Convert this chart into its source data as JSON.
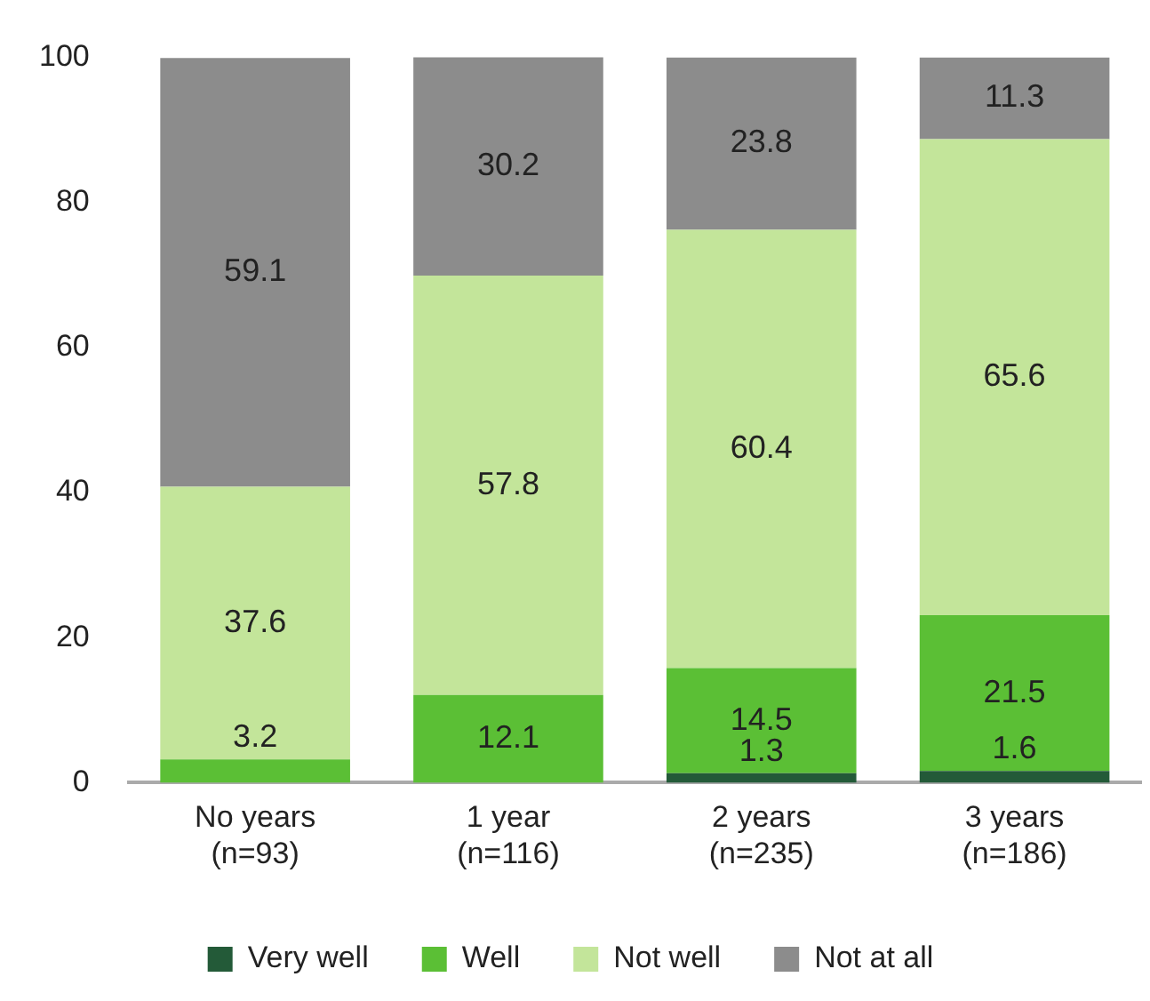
{
  "chart_data": {
    "type": "bar",
    "stacked": true,
    "categories": [
      "No years\n(n=93)",
      "1 year\n(n=116)",
      "2 years\n(n=235)",
      "3 years\n(n=186)"
    ],
    "series": [
      {
        "name": "Very well",
        "color": "#235a38",
        "values": [
          null,
          null,
          1.3,
          1.6
        ]
      },
      {
        "name": "Well",
        "color": "#5bbf35",
        "values": [
          3.2,
          12.1,
          14.5,
          21.5
        ]
      },
      {
        "name": "Not well",
        "color": "#c3e59a",
        "values": [
          37.6,
          57.8,
          60.4,
          65.6
        ]
      },
      {
        "name": "Not at all",
        "color": "#8c8c8c",
        "values": [
          59.1,
          30.2,
          23.8,
          11.3
        ]
      }
    ],
    "ylim": [
      0,
      100
    ],
    "yticks": [
      0,
      20,
      40,
      60,
      80,
      100
    ],
    "grid": false,
    "legend": "bottom",
    "data_labels": true
  }
}
